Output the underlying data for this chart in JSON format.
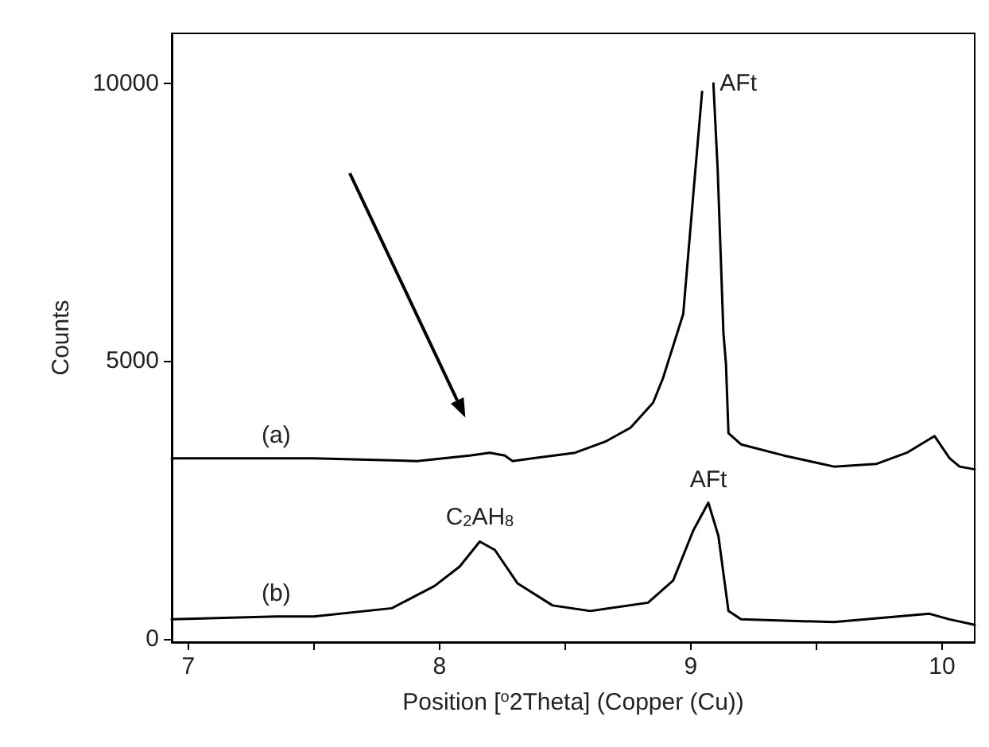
{
  "chart_data": {
    "type": "line",
    "xlabel": "Position [$^{o}$2Theta] (Copper (Cu))",
    "ylabel": "Counts",
    "xlim": [
      6.934,
      10.13
    ],
    "ylim": [
      -60,
      10900
    ],
    "xticks": [
      7,
      {
        "value": 7.5,
        "label": null
      },
      8,
      {
        "value": 8.5,
        "label": null
      },
      9,
      {
        "value": 9.5,
        "label": null
      },
      10
    ],
    "yticks": [
      0,
      5000,
      10000
    ],
    "grid": false,
    "marker": "none",
    "line_style": "solid",
    "series": [
      {
        "color": "#000000",
        "x": [
          6.934,
          7.35,
          7.5,
          7.91,
          8.12,
          8.2,
          8.26,
          8.29,
          8.37,
          8.54,
          8.66,
          8.76,
          8.85,
          8.89,
          8.97,
          9.01,
          9.045,
          9.065,
          9.08,
          9.09,
          9.107,
          9.13,
          9.14,
          9.15,
          9.2,
          9.37,
          9.57,
          9.74,
          9.86,
          9.97,
          10.03,
          10.07,
          10.13
        ],
        "values": [
          3250,
          3250,
          3250,
          3200,
          3300,
          3350,
          3300,
          3200,
          3250,
          3350,
          3550,
          3800,
          4250,
          4700,
          5850,
          8000,
          9850,
          null,
          null,
          10000,
          8450,
          5500,
          4950,
          3700,
          3500,
          3300,
          3100,
          3150,
          3350,
          3650,
          3250,
          3100,
          3050
        ]
      },
      {
        "color": "#000000",
        "x": [
          6.934,
          7.35,
          7.5,
          7.81,
          7.98,
          8.08,
          8.16,
          8.22,
          8.31,
          8.45,
          8.6,
          8.83,
          8.93,
          9.01,
          9.07,
          9.11,
          9.15,
          9.2,
          9.57,
          9.95,
          10.03,
          10.13
        ],
        "values": [
          350,
          400,
          400,
          550,
          950,
          1300,
          1750,
          1600,
          1000,
          600,
          500,
          650,
          1050,
          1950,
          2450,
          1850,
          500,
          350,
          300,
          450,
          350,
          250
        ]
      }
    ],
    "annotations": [
      {
        "text": "AFt",
        "x": 9.09,
        "y": 10000
      },
      {
        "text": "AFt",
        "x": 9.07,
        "y": 2450
      },
      {
        "text": "C$_{2}$AH$_{8}$",
        "x": 8.16,
        "y": 1750
      },
      {
        "text": "(a)",
        "x": 7.35,
        "y": 3250
      },
      {
        "text": "(b)",
        "x": 7.35,
        "y": 400
      }
    ]
  }
}
